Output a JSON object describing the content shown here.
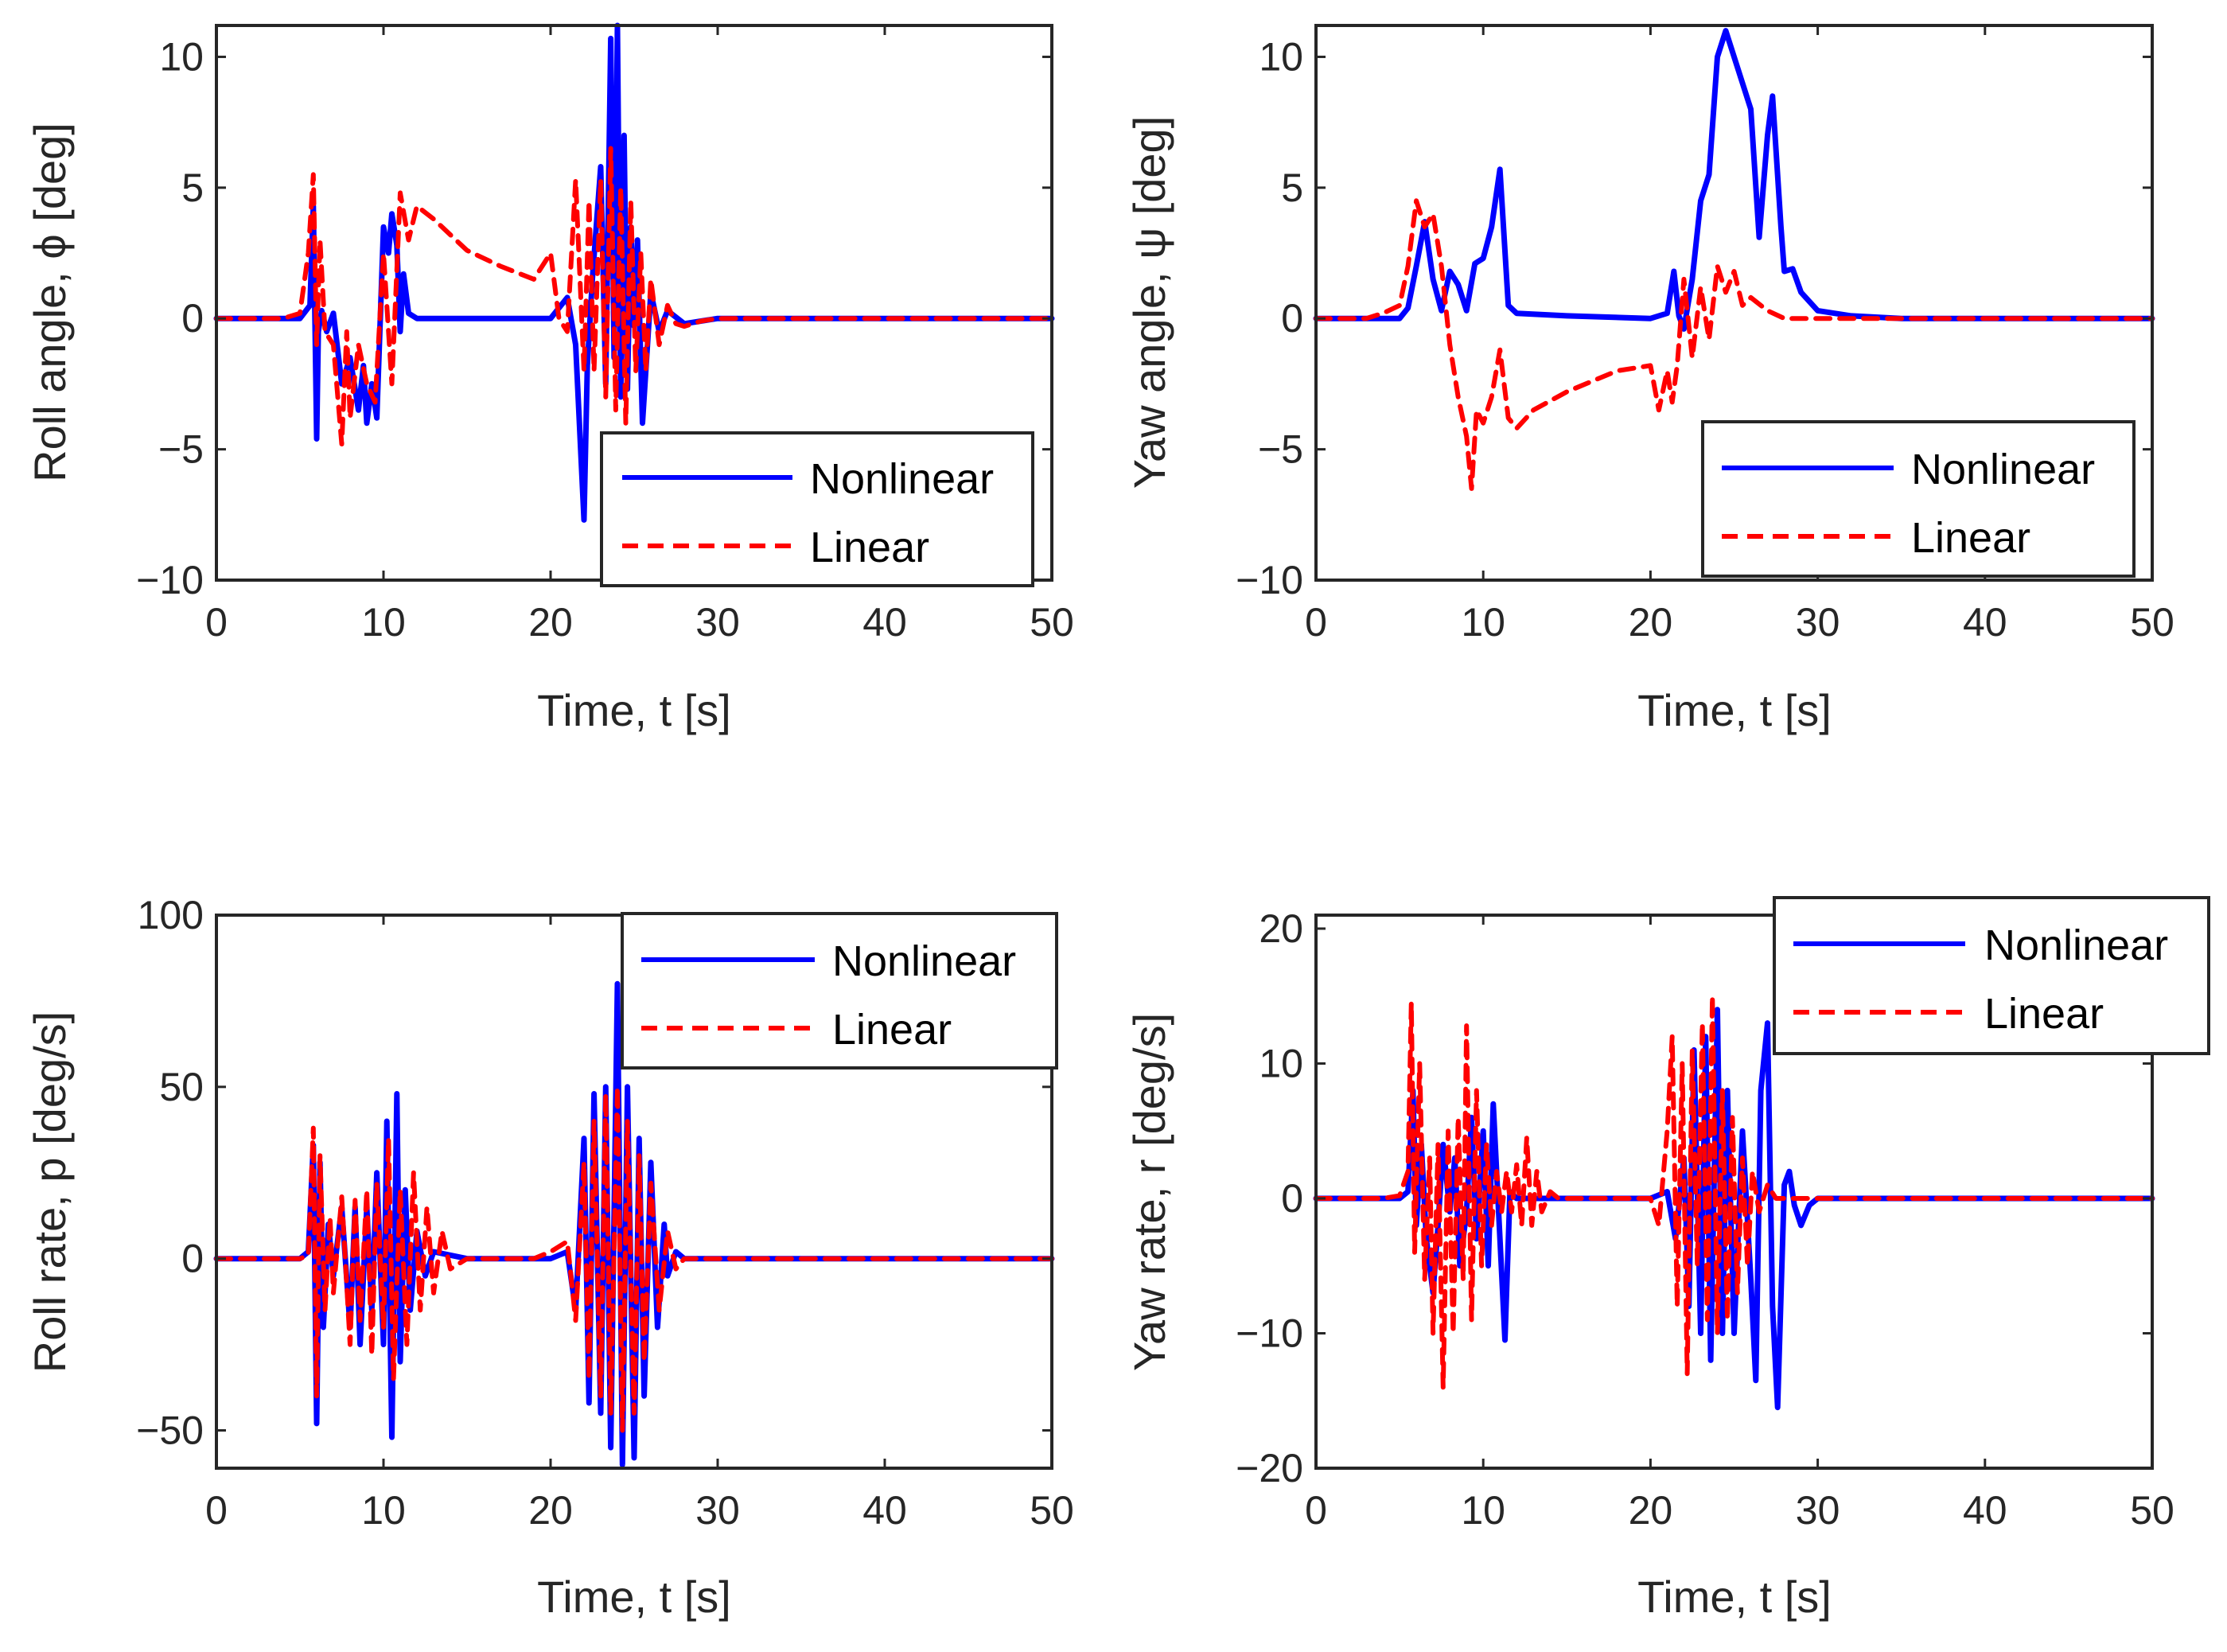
{
  "figure": {
    "layout": "2x2 grid"
  },
  "colors": {
    "nonlinear": "#0000ff",
    "linear": "#ff0000",
    "axes": "#262626"
  },
  "chart_data": [
    {
      "id": "roll-angle",
      "type": "line",
      "title": "",
      "xlabel": "Time, t [s]",
      "ylabel": "Roll angle, ϕ [deg]",
      "xlim": [
        0,
        50
      ],
      "ylim": [
        -10,
        11.2
      ],
      "xticks": [
        0,
        10,
        20,
        30,
        40,
        50
      ],
      "xtick_labels": [
        "0",
        "10",
        "20",
        "30",
        "40",
        "50"
      ],
      "yticks": [
        -10,
        -5,
        0,
        5,
        10
      ],
      "ytick_labels": [
        "−10",
        "−5",
        "0",
        "5",
        "10"
      ],
      "legend": {
        "position": "bottom-right",
        "entries": [
          "Nonlinear",
          "Linear"
        ]
      },
      "series": [
        {
          "name": "Nonlinear",
          "style": "solid",
          "x": [
            0,
            5,
            5.6,
            5.8,
            6,
            6.1,
            6.3,
            6.6,
            7,
            7.5,
            8,
            8.5,
            8.8,
            9,
            9.3,
            9.6,
            10,
            10.3,
            10.5,
            10.8,
            11,
            11.2,
            11.5,
            12,
            15,
            19,
            20,
            21,
            21.5,
            22,
            22.2,
            22.5,
            23,
            23.3,
            23.6,
            23.8,
            24,
            24.2,
            24.4,
            24.6,
            24.8,
            25,
            25.2,
            25.5,
            26,
            26.5,
            27,
            28,
            30,
            50
          ],
          "y": [
            0,
            0,
            0.5,
            4.3,
            -4.6,
            -0.5,
            0.3,
            -0.5,
            0.2,
            -2.5,
            -1.5,
            -3.5,
            -1.8,
            -4,
            -2.5,
            -3.8,
            3.5,
            2.5,
            4,
            2.8,
            -0.5,
            1.7,
            0.2,
            0,
            0,
            0,
            0,
            0.8,
            -1,
            -7.7,
            -1.8,
            1.5,
            5.8,
            -2.5,
            10.7,
            -1.5,
            11.2,
            -3,
            7,
            -2.7,
            3.5,
            -0.3,
            3,
            -4,
            1,
            -0.5,
            0.3,
            -0.2,
            0,
            0
          ]
        },
        {
          "name": "Linear",
          "style": "dashed",
          "x": [
            0,
            4,
            5,
            5.5,
            5.8,
            6,
            6.2,
            6.5,
            7,
            7.5,
            7.8,
            8,
            8.5,
            9,
            9.5,
            10,
            10.5,
            11,
            11.5,
            12,
            13,
            15,
            17,
            19,
            20,
            20.5,
            21,
            21.5,
            22,
            22.3,
            22.6,
            23,
            23.3,
            23.6,
            23.9,
            24.2,
            24.5,
            24.8,
            25.1,
            25.4,
            25.7,
            26,
            26.5,
            27,
            27.5,
            28,
            29,
            30,
            50
          ],
          "y": [
            0,
            0,
            0.2,
            2.5,
            5.5,
            -1,
            3,
            -0.5,
            -1,
            -4.8,
            -0.5,
            -3.8,
            -1,
            -2.5,
            -3.2,
            2.5,
            -2.5,
            4.8,
            3,
            4.3,
            3.8,
            2.6,
            2,
            1.5,
            2.5,
            0,
            -0.5,
            5.3,
            -2,
            4.5,
            -2,
            5.3,
            -3,
            6.5,
            -3.5,
            5,
            -4,
            4.5,
            -2,
            2.5,
            -2,
            1.5,
            -1,
            0.5,
            -0.2,
            -0.3,
            -0.1,
            0,
            0
          ]
        }
      ]
    },
    {
      "id": "yaw-angle",
      "type": "line",
      "title": "",
      "xlabel": "Time, t [s]",
      "ylabel": "Yaw angle, ψ [deg]",
      "xlim": [
        0,
        50
      ],
      "ylim": [
        -10,
        11.2
      ],
      "xticks": [
        0,
        10,
        20,
        30,
        40,
        50
      ],
      "xtick_labels": [
        "0",
        "10",
        "20",
        "30",
        "40",
        "50"
      ],
      "yticks": [
        -10,
        -5,
        0,
        5,
        10
      ],
      "ytick_labels": [
        "−10",
        "−5",
        "0",
        "5",
        "10"
      ],
      "legend": {
        "position": "bottom-right",
        "entries": [
          "Nonlinear",
          "Linear"
        ]
      },
      "series": [
        {
          "name": "Nonlinear",
          "style": "solid",
          "x": [
            0,
            5,
            5.5,
            6,
            6.5,
            7,
            7.5,
            8,
            8.5,
            9,
            9.5,
            10,
            10.5,
            11,
            11.5,
            12,
            15,
            20,
            21,
            21.4,
            21.7,
            22,
            22.5,
            23,
            23.5,
            24,
            24.5,
            25,
            25.5,
            26,
            26.5,
            27,
            27.3,
            27.8,
            28,
            28.5,
            29,
            30,
            32,
            35,
            50
          ],
          "y": [
            0,
            0,
            0.4,
            2,
            3.7,
            1.5,
            0.3,
            1.8,
            1.3,
            0.3,
            2.1,
            2.3,
            3.5,
            5.7,
            0.5,
            0.2,
            0.1,
            0,
            0.2,
            1.8,
            0.1,
            -0.4,
            1.5,
            4.5,
            5.5,
            10,
            11,
            10,
            9,
            8,
            3.1,
            7,
            8.5,
            3.5,
            1.8,
            1.9,
            1,
            0.3,
            0.1,
            0,
            0
          ]
        },
        {
          "name": "Linear",
          "style": "dashed",
          "x": [
            0,
            3,
            4,
            5,
            5.5,
            6,
            6.5,
            7,
            7.5,
            8,
            8.5,
            9,
            9.3,
            9.6,
            10,
            10.5,
            11,
            11.5,
            12,
            13,
            15,
            18,
            20,
            20.5,
            21,
            21.3,
            21.6,
            22,
            22.5,
            23,
            23.5,
            24,
            24.5,
            25,
            25.5,
            26,
            27,
            28,
            30,
            50
          ],
          "y": [
            0,
            0,
            0.2,
            0.5,
            2,
            4.5,
            3.5,
            4,
            2,
            -1,
            -3,
            -4.5,
            -6.5,
            -3.5,
            -4,
            -3,
            -1.2,
            -3.8,
            -4.2,
            -3.5,
            -2.8,
            -2,
            -1.8,
            -3.5,
            -2,
            -3.2,
            -1.8,
            1.5,
            -1.5,
            1.2,
            -0.8,
            2,
            1,
            1.8,
            0.5,
            0.8,
            0.3,
            0,
            0,
            0
          ]
        }
      ]
    },
    {
      "id": "roll-rate",
      "type": "line",
      "title": "",
      "xlabel": "Time, t [s]",
      "ylabel": "Roll rate, p [deg/s]",
      "xlim": [
        0,
        50
      ],
      "ylim": [
        -61,
        100
      ],
      "xticks": [
        0,
        10,
        20,
        30,
        40,
        50
      ],
      "xtick_labels": [
        "0",
        "10",
        "20",
        "30",
        "40",
        "50"
      ],
      "yticks": [
        -50,
        0,
        50,
        100
      ],
      "ytick_labels": [
        "−50",
        "0",
        "50",
        "100"
      ],
      "legend": {
        "position": "top-right",
        "entries": [
          "Nonlinear",
          "Linear"
        ]
      },
      "series": [
        {
          "name": "Nonlinear",
          "style": "solid",
          "x": [
            0,
            5,
            5.5,
            5.8,
            6,
            6.2,
            6.4,
            6.7,
            7,
            7.5,
            8,
            8.3,
            8.6,
            9,
            9.3,
            9.6,
            10,
            10.2,
            10.5,
            10.8,
            11,
            11.3,
            11.6,
            12,
            12.5,
            13,
            15,
            20,
            21,
            21.5,
            22,
            22.3,
            22.6,
            23,
            23.3,
            23.6,
            24,
            24.3,
            24.6,
            25,
            25.3,
            25.6,
            26,
            26.4,
            26.8,
            27,
            27.5,
            28,
            50
          ],
          "y": [
            0,
            0,
            2,
            33,
            -48,
            28,
            -20,
            10,
            -5,
            15,
            -20,
            15,
            -25,
            15,
            -15,
            25,
            -25,
            40,
            -52,
            48,
            -30,
            20,
            -15,
            8,
            -5,
            2,
            0,
            0,
            2,
            -15,
            35,
            -42,
            48,
            -45,
            50,
            -55,
            80,
            -60,
            50,
            -58,
            35,
            -40,
            28,
            -20,
            10,
            -5,
            2,
            0,
            0
          ]
        },
        {
          "name": "Linear",
          "style": "dashed",
          "x": [
            0,
            5,
            5.5,
            5.8,
            6,
            6.2,
            6.5,
            6.8,
            7,
            7.5,
            8,
            8.3,
            8.6,
            9,
            9.3,
            9.6,
            10,
            10.3,
            10.6,
            11,
            11.4,
            11.8,
            12.2,
            12.6,
            13,
            13.5,
            14,
            15,
            19,
            20,
            21,
            21.5,
            22,
            22.3,
            22.6,
            23,
            23.3,
            23.6,
            24,
            24.3,
            24.6,
            25,
            25.3,
            25.6,
            26,
            26.5,
            27,
            27.5,
            28,
            50
          ],
          "y": [
            0,
            0,
            1,
            38,
            -40,
            30,
            -15,
            12,
            -10,
            18,
            -25,
            17,
            -18,
            20,
            -28,
            22,
            -20,
            35,
            -35,
            20,
            -25,
            25,
            -15,
            15,
            -10,
            8,
            -3,
            0,
            0,
            2,
            5,
            -18,
            28,
            -35,
            40,
            -40,
            48,
            -45,
            50,
            -50,
            40,
            -45,
            30,
            -30,
            22,
            -15,
            8,
            -3,
            0,
            0
          ]
        }
      ]
    },
    {
      "id": "yaw-rate",
      "type": "line",
      "title": "",
      "xlabel": "Time, t [s]",
      "ylabel": "Yaw rate, r [deg/s]",
      "xlim": [
        0,
        50
      ],
      "ylim": [
        -20,
        21
      ],
      "xticks": [
        0,
        10,
        20,
        30,
        40,
        50
      ],
      "xtick_labels": [
        "0",
        "10",
        "20",
        "30",
        "40",
        "50"
      ],
      "yticks": [
        -20,
        -10,
        0,
        10,
        20
      ],
      "ytick_labels": [
        "−20",
        "−10",
        "0",
        "10",
        "20"
      ],
      "legend": {
        "position": "top-right",
        "entries": [
          "Nonlinear",
          "Linear"
        ]
      },
      "series": [
        {
          "name": "Nonlinear",
          "style": "solid",
          "x": [
            0,
            5,
            5.5,
            5.8,
            6,
            6.3,
            6.6,
            7,
            7.3,
            7.6,
            8,
            8.3,
            8.6,
            9,
            9.3,
            9.6,
            10,
            10.3,
            10.6,
            11,
            11.3,
            11.6,
            12,
            12.5,
            15,
            20,
            21,
            21.5,
            22,
            22.3,
            22.6,
            23,
            23.3,
            23.6,
            24,
            24.3,
            24.6,
            25,
            25.5,
            26,
            26.3,
            26.6,
            27,
            27.3,
            27.6,
            28,
            28.3,
            28.6,
            29,
            29.5,
            30,
            50
          ],
          "y": [
            0,
            0,
            0.5,
            8,
            -2,
            4,
            -3,
            -7,
            -2,
            4,
            -1,
            3,
            -5,
            -1,
            6,
            -3,
            5,
            -5,
            7,
            -3,
            -10.5,
            0.5,
            0,
            0,
            0,
            0,
            0.5,
            -3,
            3,
            -8,
            11,
            -10,
            12,
            -12,
            14,
            -10,
            8,
            -10,
            5,
            -6,
            -13.5,
            8,
            13,
            -8,
            -15.5,
            1,
            2,
            -0.5,
            -2,
            -0.5,
            0,
            0
          ]
        },
        {
          "name": "Linear",
          "style": "dashed",
          "x": [
            0,
            4,
            5,
            5.5,
            5.7,
            5.9,
            6.2,
            6.5,
            6.8,
            7,
            7.3,
            7.6,
            7.9,
            8.2,
            8.5,
            8.8,
            9,
            9.3,
            9.6,
            9.9,
            10.2,
            10.5,
            10.8,
            11.1,
            11.4,
            11.7,
            12,
            12.3,
            12.6,
            12.9,
            13.2,
            13.5,
            14,
            14.5,
            15,
            17,
            19,
            20,
            20.5,
            21,
            21.3,
            21.6,
            21.9,
            22.2,
            22.5,
            22.8,
            23.1,
            23.4,
            23.7,
            24,
            24.3,
            24.6,
            24.9,
            25.2,
            25.5,
            25.8,
            26.1,
            26.5,
            27,
            27.5,
            28,
            29,
            30,
            50
          ],
          "y": [
            0,
            0,
            0.2,
            2,
            14.5,
            -4,
            10,
            -6,
            3,
            -10,
            4,
            -14,
            5,
            -10,
            6,
            -6,
            12.8,
            -9,
            8,
            -5,
            4,
            -2,
            2,
            -1,
            2,
            -1,
            2.5,
            -2,
            4.5,
            -2,
            2,
            -1,
            0.5,
            0,
            0,
            0,
            0,
            0,
            -2,
            5,
            12,
            -8,
            10,
            -13,
            11,
            -5,
            13,
            -9,
            15,
            -10,
            8,
            -9,
            6,
            -7,
            3,
            -5,
            2,
            -1,
            1,
            0,
            0,
            0,
            0,
            0
          ]
        }
      ]
    }
  ]
}
